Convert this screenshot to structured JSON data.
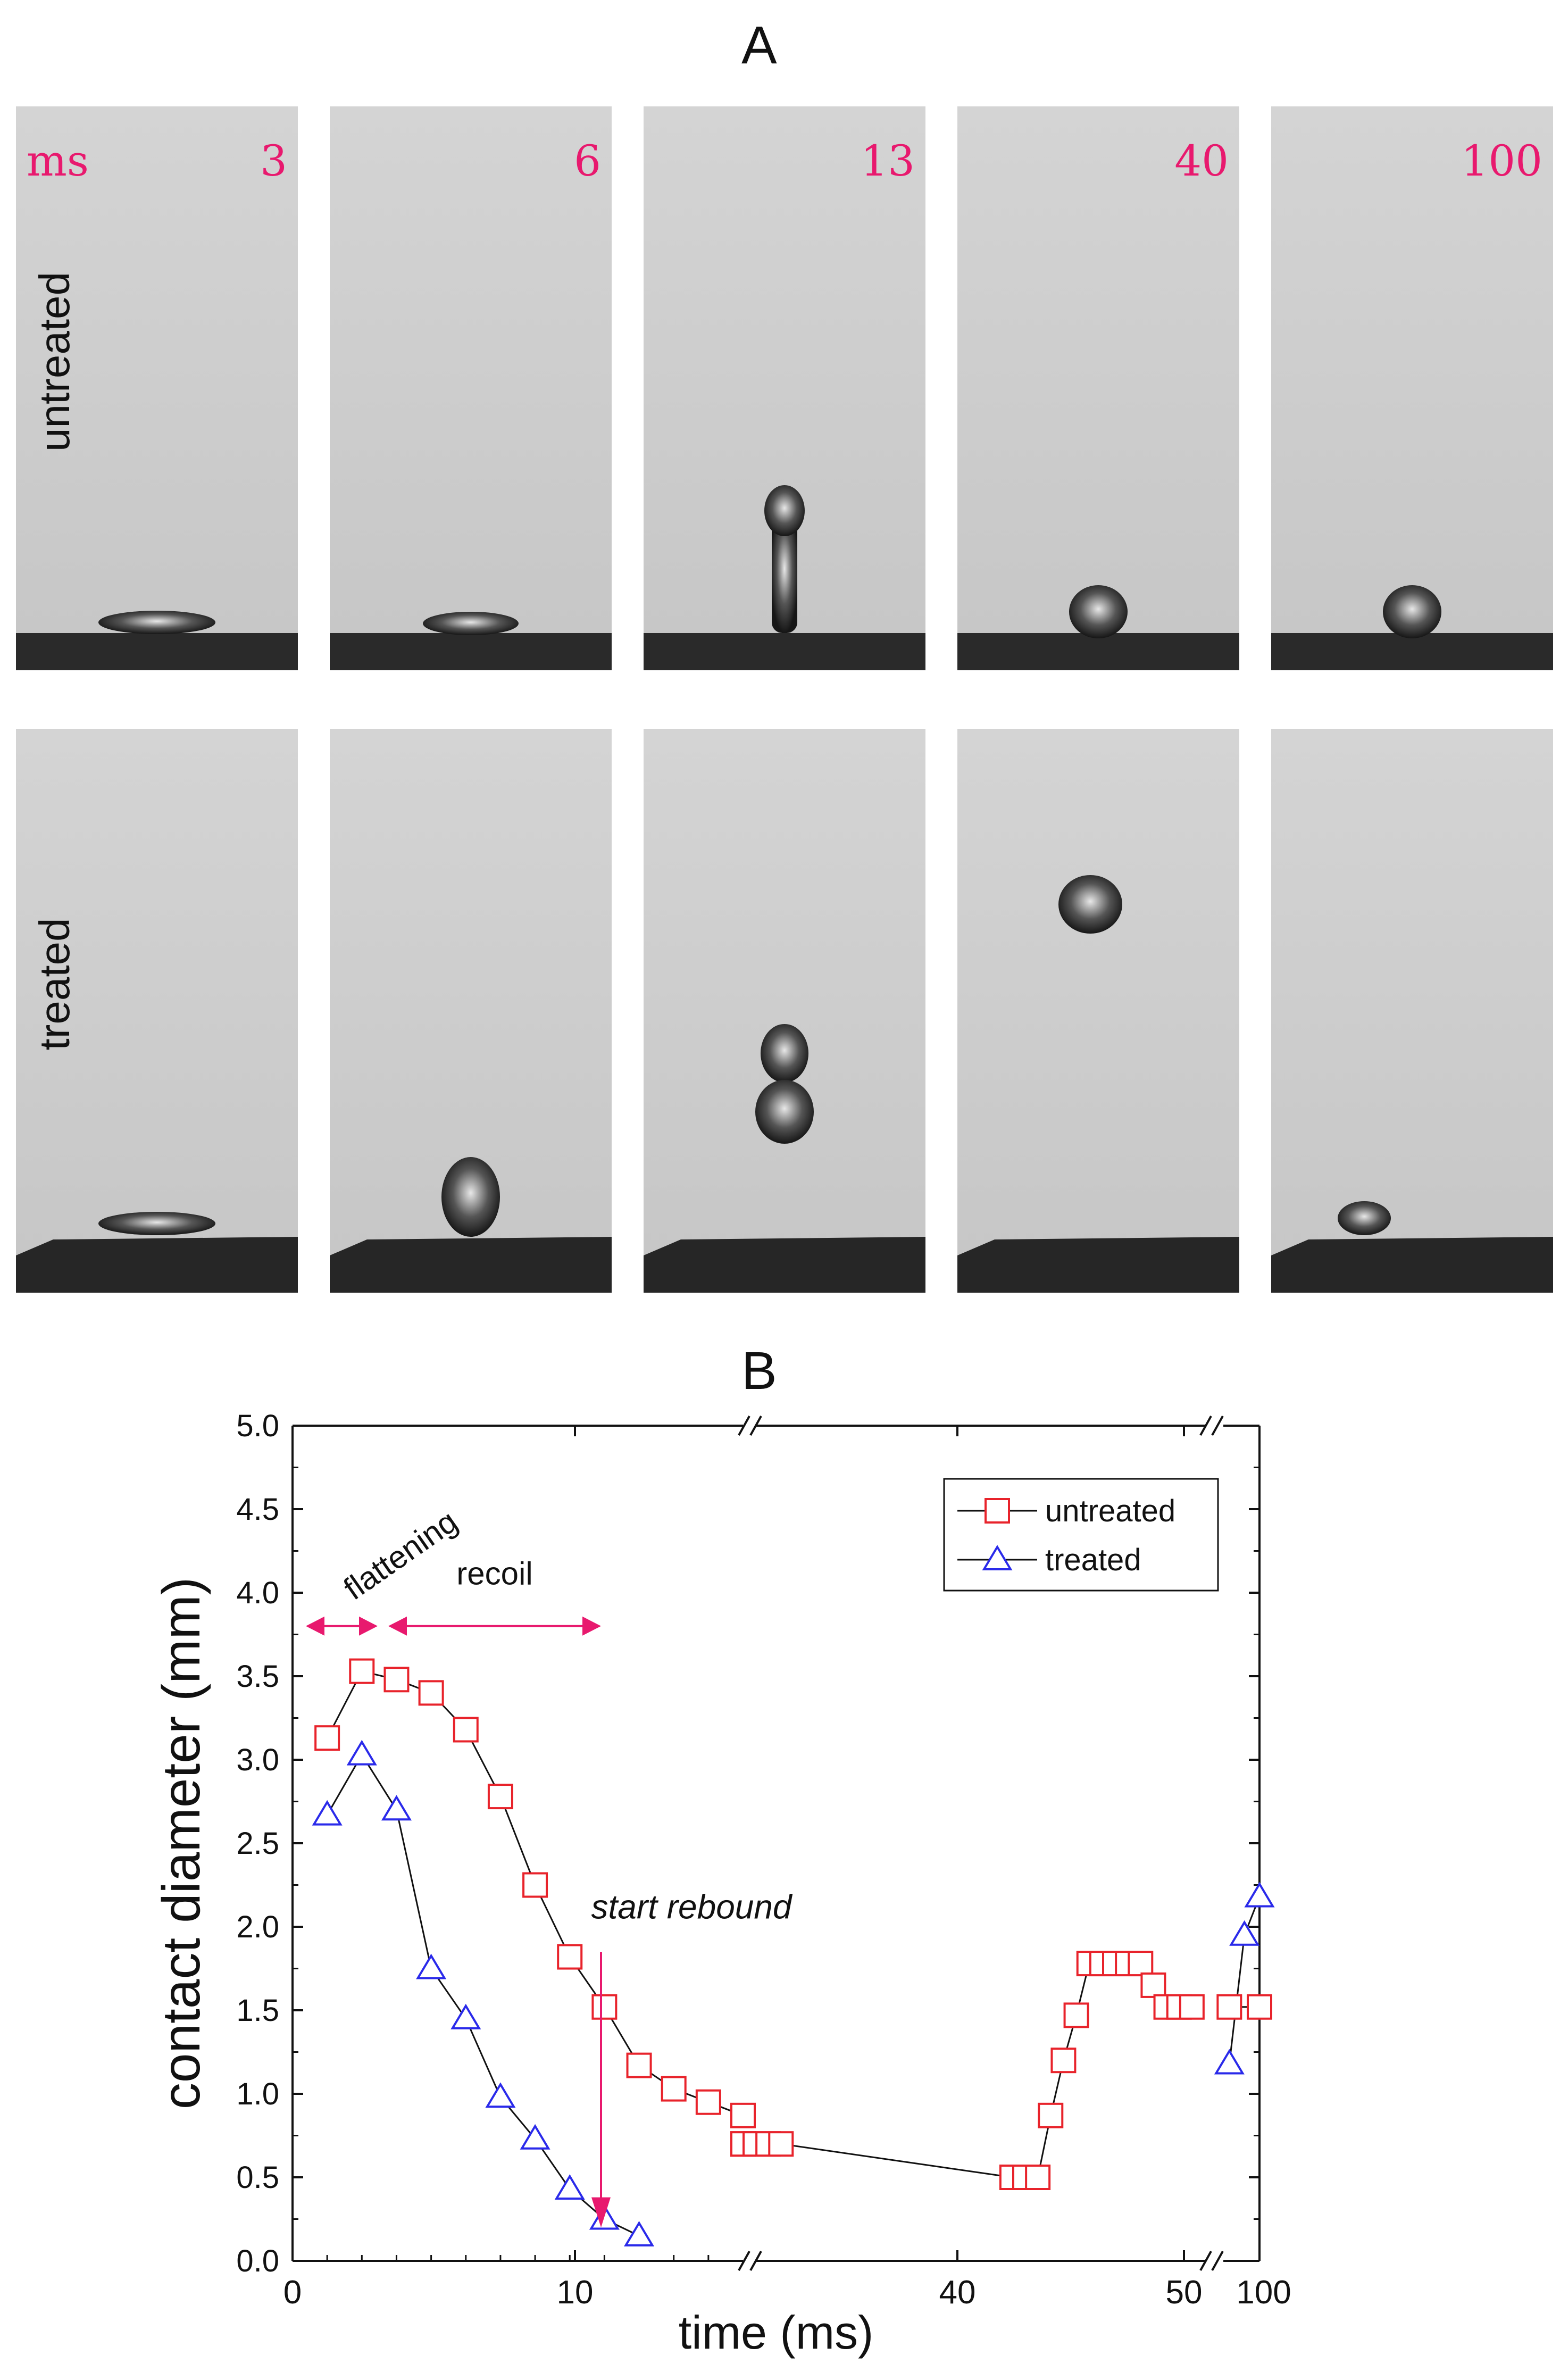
{
  "panel_a_label": "A",
  "panel_b_label": "B",
  "photo_grid": {
    "time_unit": "ms",
    "times": [
      "3",
      "6",
      "13",
      "40",
      "100"
    ],
    "rows": [
      {
        "label": "untreated",
        "frames": [
          {
            "shape": "flat-puddle"
          },
          {
            "shape": "small-puddle"
          },
          {
            "shape": "column"
          },
          {
            "shape": "dome"
          },
          {
            "shape": "dome"
          }
        ]
      },
      {
        "label": "treated",
        "frames": [
          {
            "shape": "flat-puddle"
          },
          {
            "shape": "bubble-on-surface"
          },
          {
            "shape": "detached-neck"
          },
          {
            "shape": "airborne-drop"
          },
          {
            "shape": "small-drop-on-surface"
          }
        ]
      }
    ],
    "label_color": "#e8196e"
  },
  "chart_data": {
    "type": "scatter",
    "xlabel": "time (ms)",
    "ylabel": "contact diameter (mm)",
    "ylim": [
      0,
      5.0
    ],
    "yticks": [
      "0.0",
      "0.5",
      "1.0",
      "1.5",
      "2.0",
      "2.5",
      "3.0",
      "3.5",
      "4.0",
      "4.5",
      "5.0"
    ],
    "xticks": [
      "0",
      "10",
      "40",
      "50",
      "100"
    ],
    "x_axis_breaks": true,
    "legend_position": "top-right",
    "series": [
      {
        "name": "untreated",
        "color": "#e8232b",
        "marker": "square",
        "x": [
          1,
          2,
          3,
          4,
          5,
          6,
          7,
          8,
          9,
          10,
          11,
          12,
          13,
          14,
          15,
          17,
          18,
          19,
          37,
          38,
          39,
          40,
          41,
          42,
          43,
          44,
          45,
          46,
          47,
          48,
          49,
          50,
          51,
          99,
          100
        ],
        "y": [
          3.13,
          3.53,
          3.48,
          3.4,
          3.18,
          2.78,
          2.25,
          1.82,
          1.52,
          1.17,
          1.03,
          0.95,
          0.87,
          0.7,
          0.7,
          0.7,
          0.7,
          0.7,
          0.5,
          0.5,
          0.5,
          0.87,
          1.2,
          1.47,
          1.78,
          1.78,
          1.78,
          1.78,
          1.78,
          1.65,
          1.52,
          1.52,
          1.52,
          1.52,
          1.52
        ]
      },
      {
        "name": "treated",
        "color": "#2a2aea",
        "marker": "triangle",
        "x": [
          1,
          2,
          3,
          4,
          5,
          6,
          7,
          8,
          9,
          10,
          99,
          99.5,
          100
        ],
        "y": [
          2.67,
          3.03,
          2.7,
          1.75,
          1.45,
          0.98,
          0.73,
          0.43,
          0.25,
          0.15,
          1.18,
          1.95,
          2.18
        ]
      }
    ],
    "annotations": {
      "flattening": "flattening",
      "recoil": "recoil",
      "start_rebound": "start rebound",
      "arrow_color": "#e8196e"
    }
  }
}
